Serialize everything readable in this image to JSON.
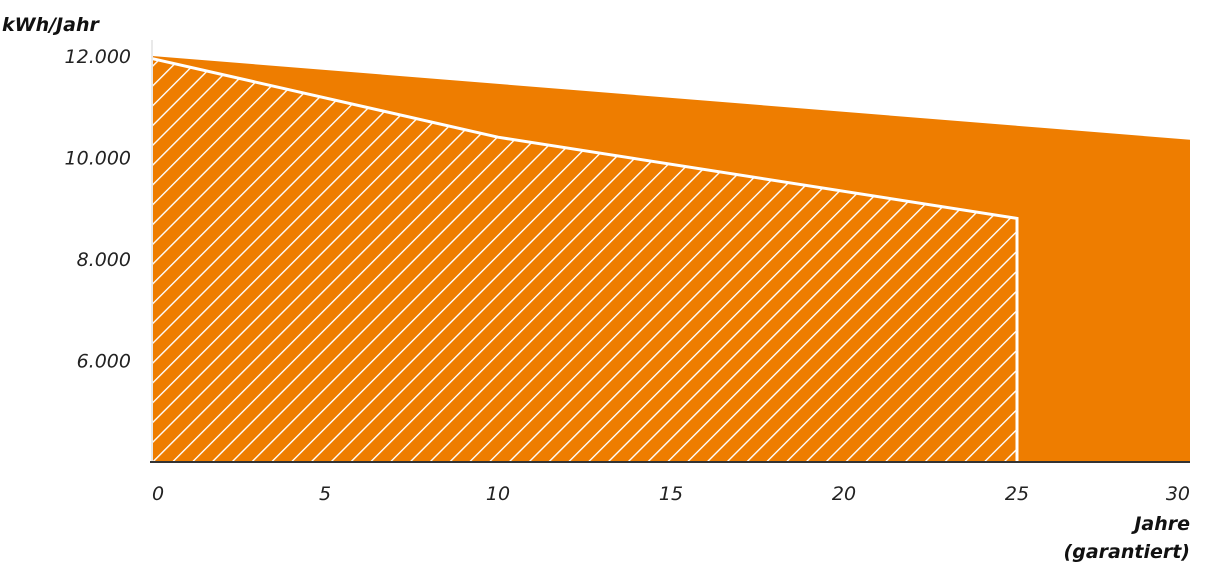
{
  "chart_data": {
    "type": "area",
    "ylabel": "kWh/Jahr",
    "xlabel_line1": "Jahre",
    "xlabel_line2": "(garantiert)",
    "xlim": [
      0,
      30
    ],
    "ylim": [
      4000,
      12000
    ],
    "x_ticks": [
      "0",
      "5",
      "10",
      "15",
      "20",
      "25",
      "30"
    ],
    "x_tick_values": [
      0,
      5,
      10,
      15,
      20,
      25,
      30
    ],
    "y_ticks": [
      "12.000",
      "10.000",
      "8.000",
      "6.000"
    ],
    "y_tick_values": [
      12000,
      10000,
      8000,
      6000
    ],
    "series": [
      {
        "style": "solid",
        "color": "#EE7D00",
        "x": [
          0,
          30
        ],
        "y": [
          12000,
          10350
        ]
      },
      {
        "style": "hatched",
        "color": "#EE7D00",
        "hatch_color": "#FFFFFF",
        "x": [
          0,
          10,
          25
        ],
        "y": [
          11950,
          10400,
          8800
        ]
      }
    ],
    "grid": false,
    "legend": "none"
  }
}
